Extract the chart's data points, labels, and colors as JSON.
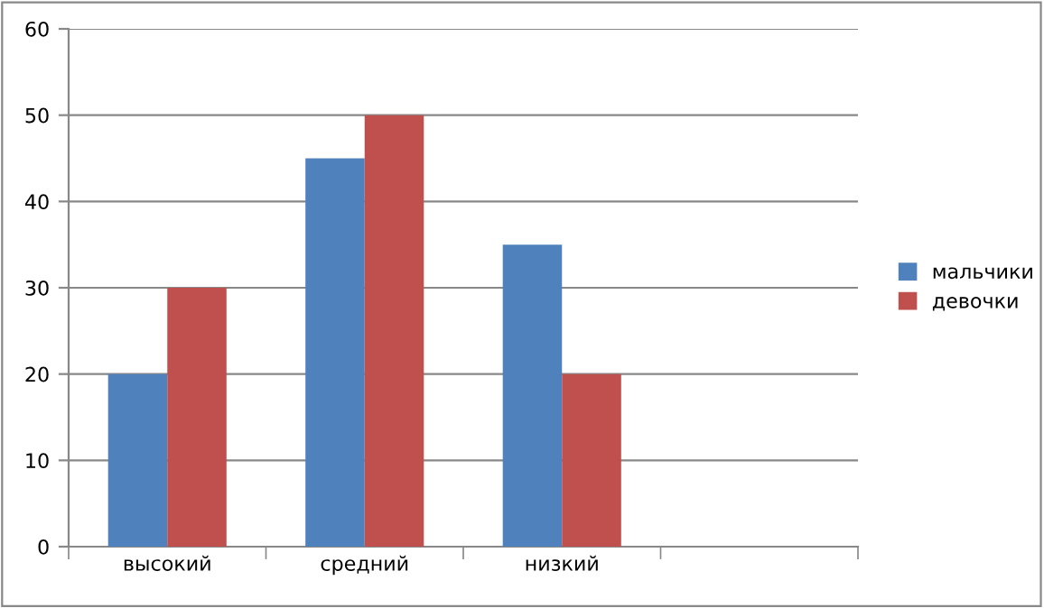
{
  "chart_data": {
    "type": "bar",
    "categories": [
      "высокий",
      "средний",
      "низкий",
      null
    ],
    "series": [
      {
        "name": "мальчики",
        "color": "#4f81bd",
        "values": [
          20,
          45,
          35,
          null
        ]
      },
      {
        "name": "девочки",
        "color": "#c0504d",
        "values": [
          30,
          50,
          20,
          null
        ]
      }
    ],
    "ylim": [
      0,
      60
    ],
    "yticks": [
      0,
      10,
      20,
      30,
      40,
      50,
      60
    ],
    "grid": "y",
    "legend": "right"
  }
}
